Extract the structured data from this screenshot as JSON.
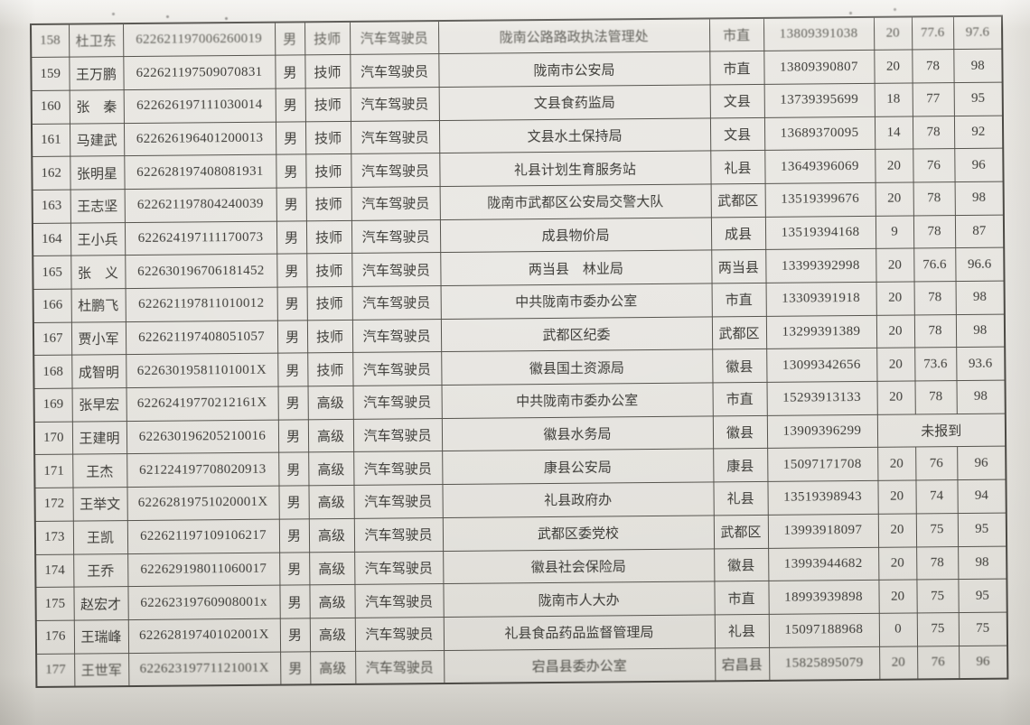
{
  "table": {
    "merged_note_label": "未报到",
    "rows": [
      {
        "no": "158",
        "name": "杜卫东",
        "id": "622621197006260019",
        "gender": "男",
        "title": "技师",
        "job": "汽车驾驶员",
        "unit": "陇南公路路政执法管理处",
        "region": "市直",
        "phone": "13809391038",
        "scores": [
          "20",
          "77.6",
          "97.6"
        ]
      },
      {
        "no": "159",
        "name": "王万鹏",
        "id": "622621197509070831",
        "gender": "男",
        "title": "技师",
        "job": "汽车驾驶员",
        "unit": "陇南市公安局",
        "region": "市直",
        "phone": "13809390807",
        "scores": [
          "20",
          "78",
          "98"
        ]
      },
      {
        "no": "160",
        "name": "张　秦",
        "id": "622626197111030014",
        "gender": "男",
        "title": "技师",
        "job": "汽车驾驶员",
        "unit": "文县食药监局",
        "region": "文县",
        "phone": "13739395699",
        "scores": [
          "18",
          "77",
          "95"
        ]
      },
      {
        "no": "161",
        "name": "马建武",
        "id": "622626196401200013",
        "gender": "男",
        "title": "技师",
        "job": "汽车驾驶员",
        "unit": "文县水土保持局",
        "region": "文县",
        "phone": "13689370095",
        "scores": [
          "14",
          "78",
          "92"
        ]
      },
      {
        "no": "162",
        "name": "张明星",
        "id": "622628197408081931",
        "gender": "男",
        "title": "技师",
        "job": "汽车驾驶员",
        "unit": "礼县计划生育服务站",
        "region": "礼县",
        "phone": "13649396069",
        "scores": [
          "20",
          "76",
          "96"
        ]
      },
      {
        "no": "163",
        "name": "王志坚",
        "id": "622621197804240039",
        "gender": "男",
        "title": "技师",
        "job": "汽车驾驶员",
        "unit": "陇南市武都区公安局交警大队",
        "region": "武都区",
        "phone": "13519399676",
        "scores": [
          "20",
          "78",
          "98"
        ]
      },
      {
        "no": "164",
        "name": "王小兵",
        "id": "622624197111170073",
        "gender": "男",
        "title": "技师",
        "job": "汽车驾驶员",
        "unit": "成县物价局",
        "region": "成县",
        "phone": "13519394168",
        "scores": [
          "9",
          "78",
          "87"
        ]
      },
      {
        "no": "165",
        "name": "张　义",
        "id": "622630196706181452",
        "gender": "男",
        "title": "技师",
        "job": "汽车驾驶员",
        "unit": "两当县　林业局",
        "region": "两当县",
        "phone": "13399392998",
        "scores": [
          "20",
          "76.6",
          "96.6"
        ]
      },
      {
        "no": "166",
        "name": "杜鹏飞",
        "id": "622621197811010012",
        "gender": "男",
        "title": "技师",
        "job": "汽车驾驶员",
        "unit": "中共陇南市委办公室",
        "region": "市直",
        "phone": "13309391918",
        "scores": [
          "20",
          "78",
          "98"
        ]
      },
      {
        "no": "167",
        "name": "贾小军",
        "id": "622621197408051057",
        "gender": "男",
        "title": "技师",
        "job": "汽车驾驶员",
        "unit": "武都区纪委",
        "region": "武都区",
        "phone": "13299391389",
        "scores": [
          "20",
          "78",
          "98"
        ]
      },
      {
        "no": "168",
        "name": "成智明",
        "id": "62263019581101001X",
        "gender": "男",
        "title": "技师",
        "job": "汽车驾驶员",
        "unit": "徽县国土资源局",
        "region": "徽县",
        "phone": "13099342656",
        "scores": [
          "20",
          "73.6",
          "93.6"
        ]
      },
      {
        "no": "169",
        "name": "张早宏",
        "id": "62262419770212161X",
        "gender": "男",
        "title": "高级",
        "job": "汽车驾驶员",
        "unit": "中共陇南市委办公室",
        "region": "市直",
        "phone": "15293913133",
        "scores": [
          "20",
          "78",
          "98"
        ]
      },
      {
        "no": "170",
        "name": "王建明",
        "id": "622630196205210016",
        "gender": "男",
        "title": "高级",
        "job": "汽车驾驶员",
        "unit": "徽县水务局",
        "region": "徽县",
        "phone": "13909396299",
        "scores_merged": "未报到"
      },
      {
        "no": "171",
        "name": "王杰",
        "id": "621224197708020913",
        "gender": "男",
        "title": "高级",
        "job": "汽车驾驶员",
        "unit": "康县公安局",
        "region": "康县",
        "phone": "15097171708",
        "scores": [
          "20",
          "76",
          "96"
        ]
      },
      {
        "no": "172",
        "name": "王举文",
        "id": "62262819751020001X",
        "gender": "男",
        "title": "高级",
        "job": "汽车驾驶员",
        "unit": "礼县政府办",
        "region": "礼县",
        "phone": "13519398943",
        "scores": [
          "20",
          "74",
          "94"
        ]
      },
      {
        "no": "173",
        "name": "王凯",
        "id": "622621197109106217",
        "gender": "男",
        "title": "高级",
        "job": "汽车驾驶员",
        "unit": "武都区委党校",
        "region": "武都区",
        "phone": "13993918097",
        "scores": [
          "20",
          "75",
          "95"
        ]
      },
      {
        "no": "174",
        "name": "王乔",
        "id": "622629198011060017",
        "gender": "男",
        "title": "高级",
        "job": "汽车驾驶员",
        "unit": "徽县社会保险局",
        "region": "徽县",
        "phone": "13993944682",
        "scores": [
          "20",
          "78",
          "98"
        ]
      },
      {
        "no": "175",
        "name": "赵宏才",
        "id": "62262319760908001x",
        "gender": "男",
        "title": "高级",
        "job": "汽车驾驶员",
        "unit": "陇南市人大办",
        "region": "市直",
        "phone": "18993939898",
        "scores": [
          "20",
          "75",
          "95"
        ]
      },
      {
        "no": "176",
        "name": "王瑞峰",
        "id": "62262819740102001X",
        "gender": "男",
        "title": "高级",
        "job": "汽车驾驶员",
        "unit": "礼县食品药品监督管理局",
        "region": "礼县",
        "phone": "15097188968",
        "scores": [
          "0",
          "75",
          "75"
        ]
      },
      {
        "no": "177",
        "name": "王世军",
        "id": "62262319771121001X",
        "gender": "男",
        "title": "高级",
        "job": "汽车驾驶员",
        "unit": "宕昌县委办公室",
        "region": "宕昌县",
        "phone": "15825895079",
        "scores": [
          "20",
          "76",
          "96"
        ]
      }
    ]
  }
}
